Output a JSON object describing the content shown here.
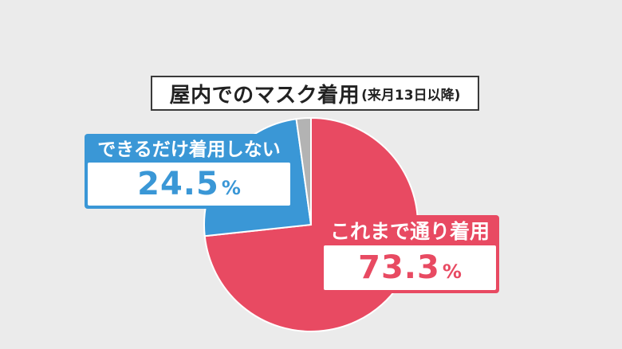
{
  "chart_data": {
    "type": "pie",
    "title": "屋内でのマスク着用",
    "subtitle": "(来月13日以降)",
    "slices": [
      {
        "label": "これまで通り着用",
        "value": 73.3,
        "display": "73.3",
        "unit": "%",
        "color": "#e84a62"
      },
      {
        "label": "できるだけ着用しない",
        "value": 24.5,
        "display": "24.5",
        "unit": "%",
        "color": "#3a97d6"
      },
      {
        "label": "",
        "value": 2.2,
        "color": "#b3b3b3"
      }
    ]
  }
}
